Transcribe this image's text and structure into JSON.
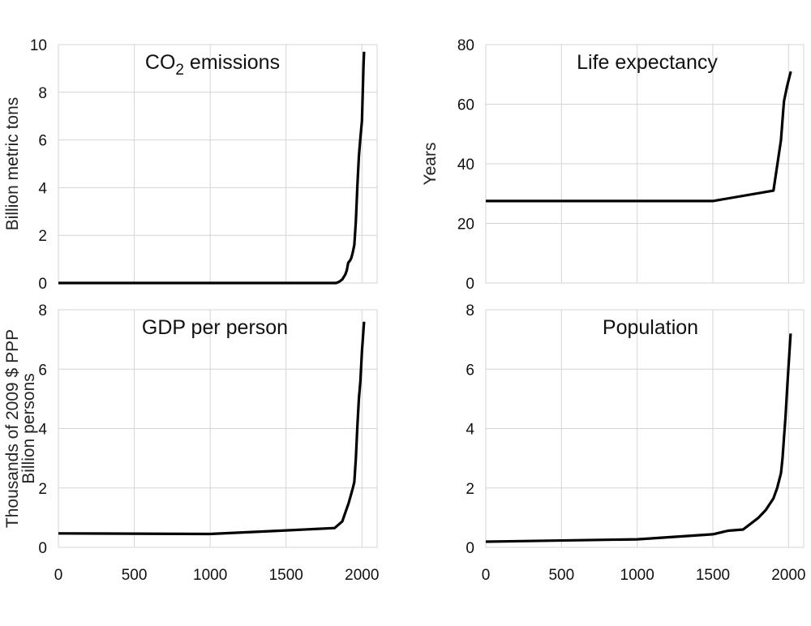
{
  "chart_data": [
    {
      "type": "line",
      "title": "CO2 emissions",
      "title_main": "CO",
      "title_sub": "2",
      "title_rest": " emissions",
      "xlabel": "",
      "ylabel": "Billion metric tons",
      "xlim": [
        0,
        2100
      ],
      "ylim": [
        0,
        10
      ],
      "xticks": [
        0,
        500,
        1000,
        1500,
        2000
      ],
      "yticks": [
        0,
        2,
        4,
        6,
        8,
        10
      ],
      "show_xtick_labels": false,
      "grid": true,
      "x": [
        0,
        1000,
        1500,
        1830,
        1850,
        1870,
        1890,
        1900,
        1910,
        1920,
        1930,
        1940,
        1950,
        1960,
        1970,
        1980,
        1990,
        2000,
        2010,
        2014
      ],
      "y": [
        0,
        0,
        0,
        0,
        0.05,
        0.15,
        0.35,
        0.53,
        0.85,
        0.93,
        1.05,
        1.3,
        1.6,
        2.6,
        4.1,
        5.3,
        6.1,
        6.8,
        9.1,
        9.7
      ]
    },
    {
      "type": "line",
      "title": "Life expectancy",
      "xlabel": "",
      "ylabel": "Years",
      "xlim": [
        0,
        2100
      ],
      "ylim": [
        0,
        80
      ],
      "xticks": [
        0,
        500,
        1000,
        1500,
        2000
      ],
      "yticks": [
        0,
        20,
        40,
        60,
        80
      ],
      "show_xtick_labels": false,
      "grid": true,
      "x": [
        0,
        1000,
        1500,
        1900,
        1950,
        1965,
        1970,
        1990,
        2015
      ],
      "y": [
        27.5,
        27.5,
        27.5,
        31,
        48,
        58,
        61,
        66,
        71
      ]
    },
    {
      "type": "line",
      "title": "GDP per person",
      "xlabel": "",
      "ylabel": "Thousands of 2009 $ PPP",
      "xlim": [
        0,
        2100
      ],
      "ylim": [
        0,
        8
      ],
      "xticks": [
        0,
        500,
        1000,
        1500,
        2000
      ],
      "yticks": [
        0,
        2,
        4,
        6,
        8
      ],
      "show_xtick_labels": true,
      "grid": true,
      "x": [
        0,
        1000,
        1500,
        1820,
        1870,
        1913,
        1940,
        1950,
        1960,
        1970,
        1980,
        1990,
        2000,
        2014
      ],
      "y": [
        0.47,
        0.45,
        0.57,
        0.65,
        0.87,
        1.5,
        2.0,
        2.2,
        3.0,
        4.1,
        5.0,
        5.6,
        6.6,
        7.6
      ]
    },
    {
      "type": "line",
      "title": "Population",
      "xlabel": "",
      "ylabel": "Billion persons",
      "xlim": [
        0,
        2100
      ],
      "ylim": [
        0,
        8
      ],
      "xticks": [
        0,
        500,
        1000,
        1500,
        2000
      ],
      "yticks": [
        0,
        2,
        4,
        6,
        8
      ],
      "show_xtick_labels": true,
      "grid": true,
      "x": [
        0,
        1000,
        1500,
        1600,
        1700,
        1800,
        1850,
        1900,
        1925,
        1950,
        1960,
        1970,
        1980,
        1990,
        2000,
        2014
      ],
      "y": [
        0.19,
        0.27,
        0.44,
        0.56,
        0.6,
        0.99,
        1.26,
        1.65,
        2.0,
        2.5,
        3.0,
        3.7,
        4.4,
        5.3,
        6.1,
        7.2
      ]
    }
  ]
}
